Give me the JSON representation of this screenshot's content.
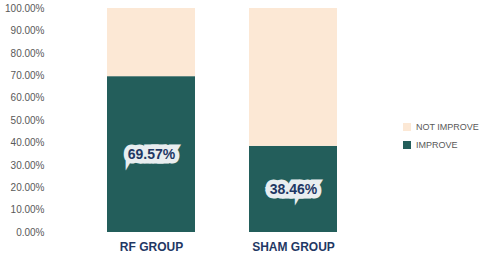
{
  "chart_data": {
    "type": "bar",
    "stacked": true,
    "data_labels": true,
    "legend": "right",
    "grid": false,
    "categories": [
      "RF GROUP",
      "SHAM GROUP"
    ],
    "series": [
      {
        "name": "IMPROVE",
        "color": "#235e5b",
        "values": [
          69.57,
          38.46
        ],
        "value_labels": [
          "69.57%",
          "38.46%"
        ]
      },
      {
        "name": "NOT IMPROVE",
        "color": "#fce8d5",
        "values": [
          30.43,
          61.54
        ]
      }
    ],
    "ylim": [
      0,
      100
    ],
    "yticks": [
      {
        "value": 0,
        "label": "0.00%"
      },
      {
        "value": 10,
        "label": "10.00%"
      },
      {
        "value": 20,
        "label": "20.00%"
      },
      {
        "value": 30,
        "label": "30.00%"
      },
      {
        "value": 40,
        "label": "40.00%"
      },
      {
        "value": 50,
        "label": "50.00%"
      },
      {
        "value": 60,
        "label": "60.00%"
      },
      {
        "value": 70,
        "label": "70.00%"
      },
      {
        "value": 80,
        "label": "80.00%"
      },
      {
        "value": 90,
        "label": "90.00%"
      },
      {
        "value": 100,
        "label": "100.00%"
      }
    ]
  }
}
